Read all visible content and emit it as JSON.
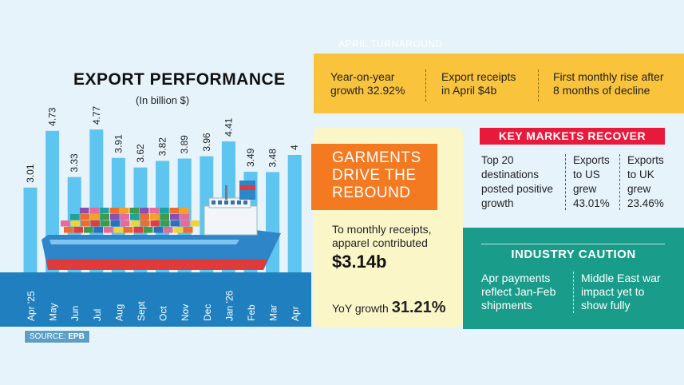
{
  "header": {
    "title": "EXPORT PERFORMANCE",
    "subtitle": "(In billion $)",
    "source_label": "SOURCE:",
    "source_value": "EPB"
  },
  "chart_data": {
    "type": "bar",
    "categories": [
      "Apr '25",
      "May",
      "Jun",
      "Jul",
      "Aug",
      "Sept",
      "Oct",
      "Nov",
      "Dec",
      "Jan '26",
      "Feb",
      "Mar",
      "Apr"
    ],
    "values": [
      3.01,
      4.73,
      3.33,
      4.77,
      3.91,
      3.62,
      3.82,
      3.89,
      3.96,
      4.41,
      3.49,
      3.48,
      4
    ],
    "value_labels": [
      "3.01",
      "4.73",
      "3.33",
      "4.77",
      "3.91",
      "3.62",
      "3.82",
      "3.89",
      "3.96",
      "4.41",
      "3.49",
      "3.48",
      "4"
    ],
    "title": "EXPORT PERFORMANCE",
    "ylabel": "(In billion $)",
    "bar_color": "#5ec4f0",
    "band_color": "#1f7fbf"
  },
  "april": {
    "label": "APRIL TURNAROUND",
    "items": [
      {
        "line1": "Year-on-year",
        "line2": "growth 32.92%"
      },
      {
        "line1": "Export receipts",
        "line2": "in April $4b"
      },
      {
        "line1": "First monthly rise after",
        "line2": "8 months of decline"
      }
    ]
  },
  "garments": {
    "heading": [
      "GARMENTS",
      "DRIVE THE",
      "REBOUND"
    ],
    "body": [
      "To monthly receipts,",
      "apparel contributed"
    ],
    "value": "$3.14b",
    "yoy_label": "YoY growth",
    "yoy_value": "31.21%"
  },
  "markets": {
    "heading": "KEY MARKETS RECOVER",
    "items": [
      {
        "lines": [
          "Top 20",
          "destinations",
          "posted positive",
          "growth"
        ]
      },
      {
        "lines": [
          "Exports",
          "to US",
          "grew",
          "43.01%"
        ]
      },
      {
        "lines": [
          "Exports",
          "to UK",
          "grew",
          "23.46%"
        ]
      }
    ]
  },
  "caution": {
    "heading": "INDUSTRY CAUTION",
    "items": [
      {
        "lines": [
          "Apr payments",
          "reflect Jan-Feb",
          "shipments"
        ]
      },
      {
        "lines": [
          "Middle East war",
          "impact yet to",
          "show fully"
        ]
      }
    ]
  },
  "colors": {
    "background": "#e6f3fb",
    "yellow": "#f9c33b",
    "orange": "#f47a22",
    "red": "#e8193b",
    "teal": "#1a9c8b",
    "cream": "#fbf6c8",
    "ship_hull": "#2e86c8",
    "ship_bottom": "#e03a3a"
  }
}
